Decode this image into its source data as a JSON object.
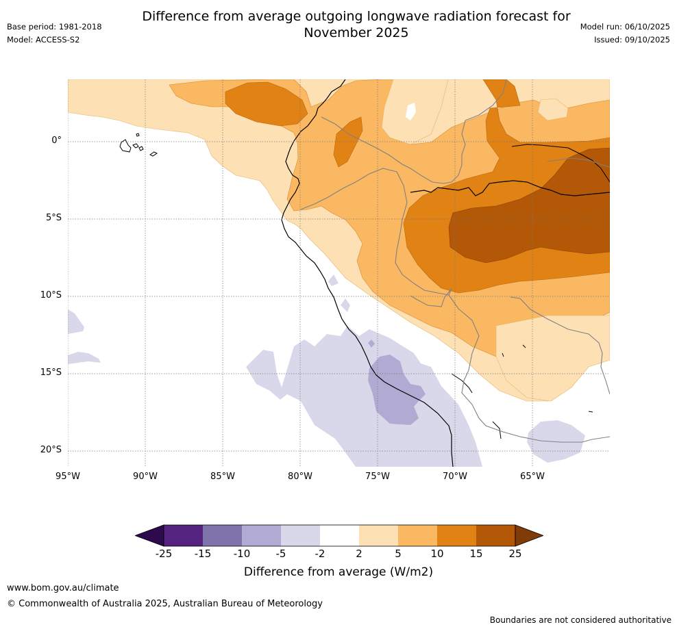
{
  "title": {
    "line1": "Difference from average outgoing longwave radiation forecast for",
    "line2": "November 2025"
  },
  "meta_left": {
    "base_period": "Base period: 1981-2018",
    "model": "Model: ACCESS-S2"
  },
  "meta_right": {
    "model_run": "Model run: 06/10/2025",
    "issued": "Issued: 09/10/2025"
  },
  "axes": {
    "lat_labels": [
      "0°",
      "5°S",
      "10°S",
      "15°S",
      "20°S"
    ],
    "lon_labels": [
      "95°W",
      "90°W",
      "85°W",
      "80°W",
      "75°W",
      "70°W",
      "65°W"
    ]
  },
  "colorbar": {
    "ticks": [
      "-25",
      "-15",
      "-10",
      "-5",
      "-2",
      "2",
      "5",
      "10",
      "15",
      "25"
    ],
    "colors": {
      "below_min": "#2d0a4e",
      "c1": "#54227f",
      "c2": "#8072aa",
      "c3": "#b1aad2",
      "c4": "#d9d8ea",
      "c5": "#ffffff",
      "c6": "#fde1b5",
      "c7": "#fab862",
      "c8": "#e08214",
      "c9": "#b35806",
      "above_max": "#7f3b08"
    },
    "label": "Difference from average (W/m2)"
  },
  "footer": {
    "url": "www.bom.gov.au/climate",
    "copyright": "© Commonwealth of Australia 2025, Australian Bureau of Meteorology",
    "disclaimer": "Boundaries are not considered authoritative"
  }
}
